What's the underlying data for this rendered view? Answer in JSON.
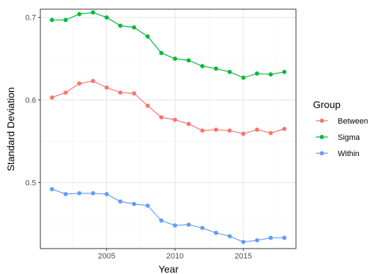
{
  "chart_data": {
    "type": "line",
    "title": "",
    "xlabel": "Year",
    "ylabel": "Standard Deviation",
    "xlim": [
      2000.15,
      2018.85
    ],
    "ylim": [
      0.42,
      0.71
    ],
    "x_ticks": [
      2005,
      2010,
      2015
    ],
    "x_tick_labels": [
      "2005",
      "2010",
      "2015"
    ],
    "y_ticks": [
      0.5,
      0.6,
      0.7
    ],
    "y_tick_labels": [
      "0.5",
      "0.6",
      "0.7"
    ],
    "grid": true,
    "legend": {
      "title": "Group",
      "position": "right"
    },
    "x": [
      2001,
      2002,
      2003,
      2004,
      2005,
      2006,
      2007,
      2008,
      2009,
      2010,
      2011,
      2012,
      2013,
      2014,
      2015,
      2016,
      2017,
      2018
    ],
    "series": [
      {
        "name": "Between",
        "color": "#F8766D",
        "values": [
          0.603,
          0.609,
          0.62,
          0.623,
          0.615,
          0.609,
          0.608,
          0.593,
          0.579,
          0.576,
          0.571,
          0.563,
          0.564,
          0.563,
          0.559,
          0.564,
          0.56,
          0.565
        ]
      },
      {
        "name": "Sigma",
        "color": "#00BA38",
        "values": [
          0.697,
          0.697,
          0.704,
          0.706,
          0.7,
          0.69,
          0.688,
          0.677,
          0.657,
          0.65,
          0.648,
          0.641,
          0.638,
          0.634,
          0.627,
          0.632,
          0.631,
          0.634
        ]
      },
      {
        "name": "Within",
        "color": "#619CFF",
        "values": [
          0.492,
          0.486,
          0.487,
          0.487,
          0.486,
          0.477,
          0.474,
          0.472,
          0.454,
          0.448,
          0.449,
          0.445,
          0.439,
          0.435,
          0.428,
          0.43,
          0.433,
          0.433
        ]
      }
    ]
  }
}
